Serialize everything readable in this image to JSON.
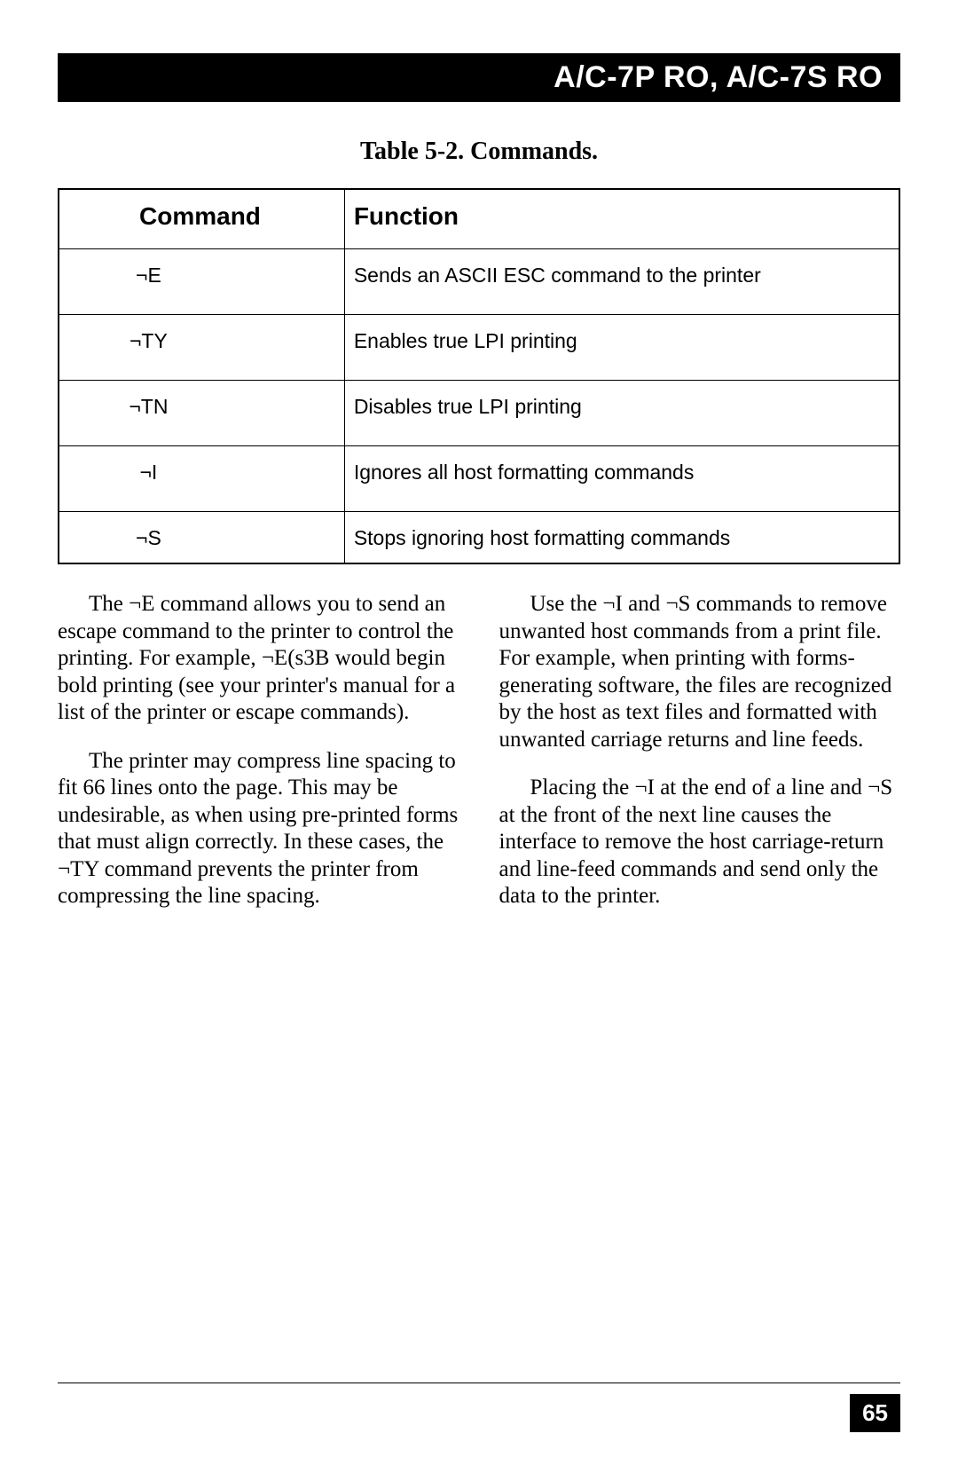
{
  "header": {
    "title": "A/C-7P RO, A/C-7S RO"
  },
  "table": {
    "caption": "Table 5-2. Commands.",
    "columns": [
      "Command",
      "Function"
    ],
    "rows": [
      {
        "cmd": "¬E",
        "fn": "Sends an ASCII ESC command to the printer"
      },
      {
        "cmd": "¬TY",
        "fn": "Enables true LPI printing"
      },
      {
        "cmd": "¬TN",
        "fn": "Disables true LPI printing"
      },
      {
        "cmd": "¬I",
        "fn": "Ignores all host formatting commands"
      },
      {
        "cmd": "¬S",
        "fn": "Stops ignoring host formatting commands"
      }
    ]
  },
  "body": {
    "left": {
      "p1": "The ¬E command allows you to send an escape command to the printer to control the printing. For example, ¬E(s3B would begin bold printing (see your printer's manual for a list of the printer or escape commands).",
      "p2": "The printer may compress line spacing to fit 66 lines onto the page. This may be undesirable, as when using pre-printed forms that must align correctly. In these cases, the ¬TY command prevents the printer from compressing the line spacing."
    },
    "right": {
      "p1": "Use the ¬I and ¬S commands to remove unwanted host commands from a print file. For example, when printing with forms-generating software, the files are recognized by the host as text files and formatted with unwanted carriage returns and line feeds.",
      "p2": "Placing the ¬I at the end of a line and ¬S at the front of the next line causes the interface to remove the host carriage-return and line-feed commands and send only the data to the printer."
    }
  },
  "page_number": "65",
  "colors": {
    "bg": "#ffffff",
    "fg": "#000000"
  }
}
